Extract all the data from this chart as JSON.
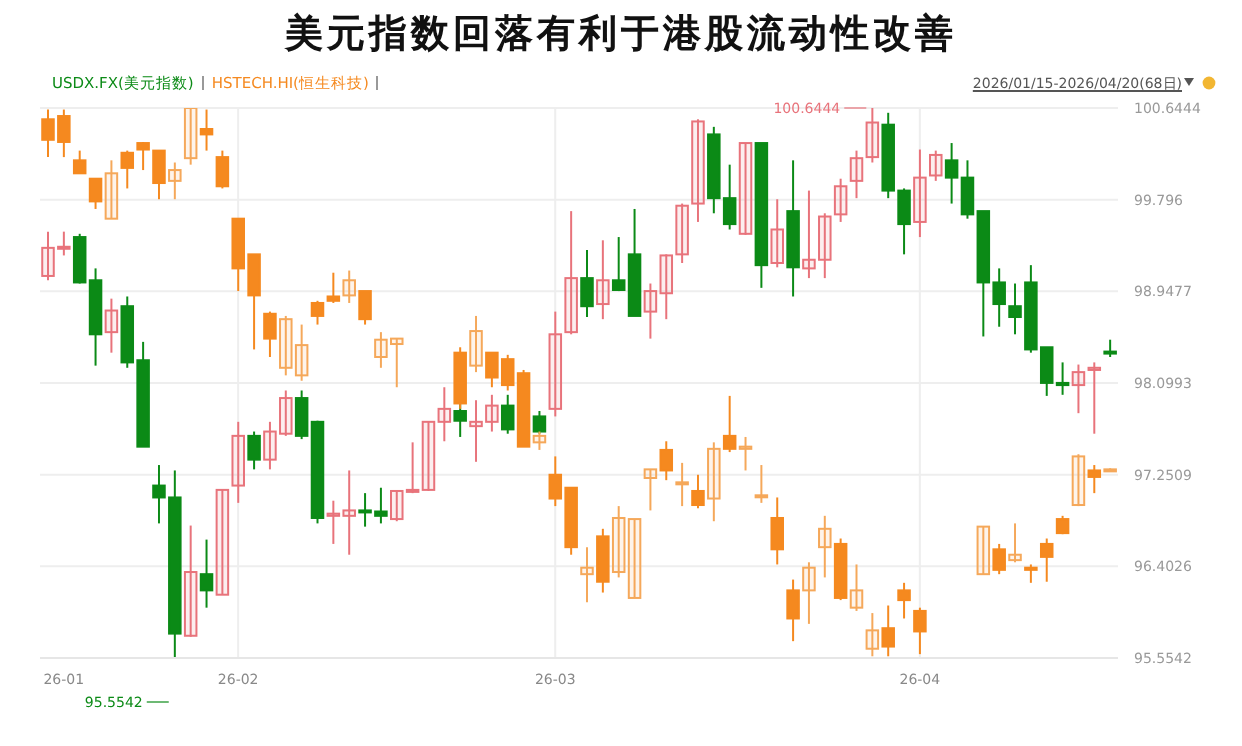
{
  "chart_data": {
    "type": "candlestick",
    "title": "美元指数回落有利于港股流动性改善",
    "categories": [
      null,
      "26-01",
      null,
      null,
      null,
      null,
      null,
      null,
      null,
      null,
      null,
      null,
      "26-02",
      null,
      null,
      null,
      null,
      null,
      null,
      null,
      null,
      null,
      null,
      null,
      null,
      null,
      null,
      null,
      null,
      null,
      null,
      null,
      "26-03",
      null,
      null,
      null,
      null,
      null,
      null,
      null,
      null,
      null,
      null,
      null,
      null,
      null,
      null,
      null,
      null,
      null,
      null,
      null,
      null,
      null,
      null,
      "26-04",
      null,
      null,
      null,
      null,
      null,
      null,
      null,
      null,
      null,
      null,
      null,
      null
    ],
    "series": [
      {
        "name": "USDX.FX(美元指数)",
        "color": "#0b8a16",
        "colors": [
          "#e8737b",
          "#e8737b",
          "#0b8a16",
          "#0b8a16",
          "#e8737b",
          "#0b8a16",
          "#0b8a16",
          "#0b8a16",
          "#0b8a16",
          "#e8737b",
          "#0b8a16",
          "#e8737b",
          "#e8737b",
          "#0b8a16",
          "#e8737b",
          "#e8737b",
          "#0b8a16",
          "#0b8a16",
          "#e8737b",
          "#e8737b",
          "#0b8a16",
          "#0b8a16",
          "#e8737b",
          "#e8737b",
          "#e8737b",
          "#e8737b",
          "#0b8a16",
          "#e8737b",
          "#e8737b",
          "#0b8a16",
          null,
          "#0b8a16",
          "#e8737b",
          "#e8737b",
          "#0b8a16",
          "#e8737b",
          "#0b8a16",
          "#0b8a16",
          "#e8737b",
          "#e8737b",
          "#e8737b",
          "#e8737b",
          "#0b8a16",
          "#0b8a16",
          "#e8737b",
          "#0b8a16",
          "#e8737b",
          "#0b8a16",
          "#e8737b",
          "#e8737b",
          "#e8737b",
          "#e8737b",
          "#e8737b",
          "#0b8a16",
          "#0b8a16",
          "#e8737b",
          "#e8737b",
          "#0b8a16",
          "#0b8a16",
          "#0b8a16",
          "#0b8a16",
          "#0b8a16",
          "#0b8a16",
          "#0b8a16",
          "#0b8a16",
          "#e8737b",
          "#e8737b",
          "#0b8a16"
        ],
        "ohlc": [
          [
            99.09,
            99.5,
            99.05,
            99.35
          ],
          [
            99.35,
            99.5,
            99.28,
            99.36
          ],
          [
            99.45,
            99.48,
            99.02,
            99.03
          ],
          [
            99.05,
            99.16,
            98.26,
            98.55
          ],
          [
            98.57,
            98.88,
            98.38,
            98.77
          ],
          [
            98.81,
            98.9,
            98.24,
            98.29
          ],
          [
            98.31,
            98.48,
            97.51,
            97.51
          ],
          [
            97.15,
            97.34,
            96.8,
            97.04
          ],
          [
            97.04,
            97.29,
            95.5542,
            95.78
          ],
          [
            95.76,
            96.78,
            95.75,
            96.35
          ],
          [
            96.33,
            96.65,
            96.02,
            96.18
          ],
          [
            96.14,
            97.11,
            96.14,
            97.11
          ],
          [
            97.15,
            97.74,
            96.99,
            97.61
          ],
          [
            97.61,
            97.65,
            97.3,
            97.39
          ],
          [
            97.39,
            97.74,
            97.3,
            97.65
          ],
          [
            97.63,
            98.03,
            97.61,
            97.96
          ],
          [
            97.96,
            98.03,
            97.58,
            97.61
          ],
          [
            97.74,
            97.75,
            96.8,
            96.85
          ],
          [
            96.87,
            97.01,
            96.61,
            96.89
          ],
          [
            96.87,
            97.29,
            96.51,
            96.92
          ],
          [
            96.92,
            97.08,
            96.77,
            96.91
          ],
          [
            96.91,
            97.13,
            96.8,
            96.87
          ],
          [
            96.84,
            97.1,
            96.82,
            97.1
          ],
          [
            97.1,
            97.55,
            97.08,
            97.11
          ],
          [
            97.11,
            97.74,
            97.1,
            97.74
          ],
          [
            97.74,
            98.06,
            97.56,
            97.86
          ],
          [
            97.84,
            97.91,
            97.6,
            97.75
          ],
          [
            97.7,
            97.94,
            97.37,
            97.74
          ],
          [
            97.74,
            97.99,
            97.65,
            97.89
          ],
          [
            97.89,
            97.99,
            97.63,
            97.67
          ],
          null,
          [
            97.79,
            97.84,
            97.63,
            97.65
          ],
          [
            97.86,
            98.76,
            97.79,
            98.55
          ],
          [
            98.57,
            99.69,
            98.55,
            99.07
          ],
          [
            99.07,
            99.33,
            98.71,
            98.81
          ],
          [
            98.83,
            99.42,
            98.69,
            99.05
          ],
          [
            99.05,
            99.45,
            98.95,
            98.96
          ],
          [
            99.29,
            99.71,
            98.72,
            98.72
          ],
          [
            98.76,
            99.02,
            98.51,
            98.95
          ],
          [
            98.93,
            99.29,
            98.69,
            99.28
          ],
          [
            99.29,
            99.76,
            99.21,
            99.74
          ],
          [
            99.76,
            100.54,
            99.59,
            100.52
          ],
          [
            100.4,
            100.47,
            99.67,
            99.81
          ],
          [
            99.81,
            100.12,
            99.52,
            99.57
          ],
          [
            99.48,
            100.32,
            99.47,
            100.32
          ],
          [
            100.32,
            100.32,
            98.98,
            99.19
          ],
          [
            99.21,
            99.8,
            99.17,
            99.52
          ],
          [
            99.69,
            100.16,
            98.9,
            99.17
          ],
          [
            99.16,
            99.88,
            99.07,
            99.24
          ],
          [
            99.24,
            99.67,
            99.07,
            99.64
          ],
          [
            99.66,
            99.99,
            99.59,
            99.92
          ],
          [
            99.97,
            100.25,
            99.81,
            100.18
          ],
          [
            100.19,
            100.6444,
            100.14,
            100.51
          ],
          [
            100.49,
            100.6,
            99.81,
            99.88
          ],
          [
            99.88,
            99.9,
            99.29,
            99.57
          ],
          [
            99.59,
            100.26,
            99.45,
            100.0
          ],
          [
            100.02,
            100.25,
            99.97,
            100.21
          ],
          [
            100.16,
            100.32,
            99.76,
            100.0
          ],
          [
            100.0,
            100.16,
            99.62,
            99.66
          ],
          [
            99.69,
            99.69,
            98.53,
            99.03
          ],
          [
            99.03,
            99.16,
            98.62,
            98.83
          ],
          [
            98.81,
            99.02,
            98.55,
            98.71
          ],
          [
            99.03,
            99.19,
            98.38,
            98.41
          ],
          [
            98.43,
            98.43,
            97.98,
            98.1
          ],
          [
            98.1,
            98.29,
            97.99,
            98.08
          ],
          [
            98.08,
            98.27,
            97.82,
            98.2
          ],
          [
            98.22,
            98.29,
            97.63,
            98.24
          ],
          [
            98.39,
            98.5,
            98.34,
            98.38
          ]
        ]
      },
      {
        "name": "HSTECH.HI(恒生科技)",
        "color": "#f5891f",
        "colors": [
          "#f5891f",
          "#f5891f",
          "#f5891f",
          "#f5891f",
          "#f5a85a",
          "#f5891f",
          "#f5891f",
          "#f5891f",
          "#f5a85a",
          "#f5a85a",
          "#f5891f",
          "#f5891f",
          "#f5891f",
          "#f5891f",
          "#f5891f",
          "#f5a85a",
          "#f5a85a",
          "#f5891f",
          "#f5891f",
          "#f5a85a",
          "#f5891f",
          "#f5a85a",
          "#f5a85a",
          null,
          null,
          null,
          "#f5891f",
          "#f5a85a",
          "#f5891f",
          "#f5891f",
          "#f5891f",
          "#f5a85a",
          "#f5891f",
          "#f5891f",
          "#f5a85a",
          "#f5891f",
          "#f5a85a",
          "#f5a85a",
          "#f5a85a",
          "#f5891f",
          "#f5a85a",
          "#f5891f",
          "#f5a85a",
          "#f5891f",
          "#f5a85a",
          "#f5a85a",
          "#f5891f",
          "#f5891f",
          "#f5a85a",
          "#f5a85a",
          "#f5891f",
          "#f5a85a",
          "#f5a85a",
          "#f5891f",
          "#f5891f",
          "#f5891f",
          null,
          null,
          null,
          "#f5a85a",
          "#f5891f",
          "#f5a85a",
          "#f5891f",
          "#f5891f",
          "#f5891f",
          "#f5a85a",
          "#f5891f",
          "#f5a85a"
        ],
        "ohlc": [
          [
            100.54,
            100.63,
            100.19,
            100.35
          ],
          [
            100.57,
            100.63,
            100.19,
            100.33
          ],
          [
            100.16,
            100.25,
            100.04,
            100.04
          ],
          [
            99.99,
            99.99,
            99.71,
            99.78
          ],
          [
            99.62,
            100.16,
            99.62,
            100.04
          ],
          [
            100.23,
            100.25,
            99.9,
            100.09
          ],
          [
            100.32,
            100.33,
            100.07,
            100.26
          ],
          [
            100.25,
            100.25,
            99.8,
            99.95
          ],
          [
            99.97,
            100.14,
            99.8,
            100.07
          ],
          [
            100.18,
            100.6444,
            100.12,
            100.6444
          ],
          [
            100.45,
            100.63,
            100.25,
            100.4
          ],
          [
            100.19,
            100.25,
            99.9,
            99.92
          ],
          [
            99.62,
            99.62,
            98.95,
            99.16
          ],
          [
            99.29,
            99.29,
            98.41,
            98.91
          ],
          [
            98.74,
            98.76,
            98.34,
            98.51
          ],
          [
            98.24,
            98.72,
            98.17,
            98.69
          ],
          [
            98.17,
            98.64,
            98.12,
            98.45
          ],
          [
            98.84,
            98.86,
            98.64,
            98.72
          ],
          [
            98.9,
            99.12,
            98.84,
            98.86
          ],
          [
            98.91,
            99.14,
            98.84,
            99.05
          ],
          [
            98.95,
            98.95,
            98.64,
            98.69
          ],
          [
            98.34,
            98.57,
            98.24,
            98.5
          ],
          [
            98.46,
            98.51,
            98.06,
            98.51
          ],
          null,
          null,
          null,
          [
            98.38,
            98.43,
            97.86,
            97.91
          ],
          [
            98.26,
            98.72,
            98.2,
            98.58
          ],
          [
            98.38,
            98.38,
            98.06,
            98.15
          ],
          [
            98.32,
            98.36,
            98.03,
            98.08
          ],
          [
            98.19,
            98.22,
            97.51,
            97.51
          ],
          [
            97.55,
            97.65,
            97.48,
            97.61
          ],
          [
            97.25,
            97.42,
            96.96,
            97.03
          ],
          [
            97.13,
            97.13,
            96.51,
            96.58
          ],
          [
            96.33,
            96.58,
            96.07,
            96.39
          ],
          [
            96.68,
            96.75,
            96.16,
            96.26
          ],
          [
            96.35,
            96.96,
            96.3,
            96.85
          ],
          [
            96.11,
            96.84,
            96.11,
            96.84
          ],
          [
            97.22,
            97.3,
            96.92,
            97.3
          ],
          [
            97.48,
            97.56,
            97.2,
            97.29
          ],
          [
            97.17,
            97.36,
            96.96,
            97.18
          ],
          [
            97.1,
            97.25,
            96.94,
            96.97
          ],
          [
            97.03,
            97.55,
            96.82,
            97.49
          ],
          [
            97.61,
            97.98,
            97.46,
            97.49
          ],
          [
            97.49,
            97.6,
            97.29,
            97.51
          ],
          [
            97.06,
            97.34,
            96.99,
            97.06
          ],
          [
            96.85,
            97.04,
            96.42,
            96.56
          ],
          [
            96.18,
            96.28,
            95.71,
            95.92
          ],
          [
            96.18,
            96.44,
            95.87,
            96.39
          ],
          [
            96.58,
            96.87,
            96.3,
            96.75
          ],
          [
            96.61,
            96.66,
            96.09,
            96.11
          ],
          [
            96.02,
            96.42,
            95.99,
            96.18
          ],
          [
            95.64,
            95.97,
            95.57,
            95.81
          ],
          [
            95.83,
            96.04,
            95.57,
            95.66
          ],
          [
            96.18,
            96.25,
            95.92,
            96.09
          ],
          [
            95.99,
            96.02,
            95.59,
            95.8
          ],
          null,
          null,
          null,
          [
            96.33,
            96.77,
            96.33,
            96.77
          ],
          [
            96.56,
            96.61,
            96.33,
            96.37
          ],
          [
            96.46,
            96.8,
            96.44,
            96.51
          ],
          [
            96.39,
            96.42,
            96.25,
            96.37
          ],
          [
            96.61,
            96.66,
            96.26,
            96.49
          ],
          [
            96.84,
            96.87,
            96.7,
            96.71
          ],
          [
            96.97,
            97.44,
            96.96,
            97.42
          ],
          [
            97.29,
            97.34,
            97.08,
            97.23
          ],
          [
            97.29,
            97.31,
            97.29,
            97.3
          ]
        ]
      }
    ],
    "ylim": [
      95.5542,
      100.6444
    ],
    "yticks": [
      95.5542,
      96.4026,
      97.2509,
      98.0993,
      98.9477,
      99.796,
      100.6444
    ],
    "grid": true,
    "legend": "top left",
    "annotations": [
      "2026/01/15-2026/04/20(68日)",
      "100.6444",
      "95.5542"
    ]
  }
}
